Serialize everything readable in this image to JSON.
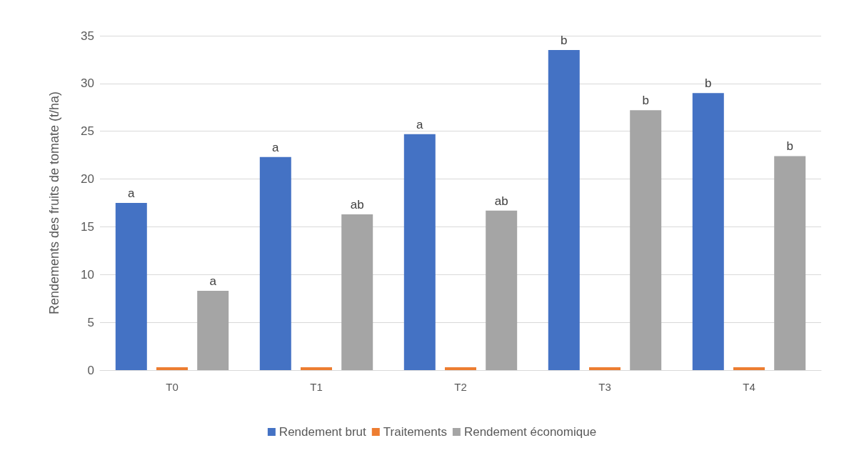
{
  "chart_data": {
    "type": "bar",
    "ylabel": "Rendements des fruits de tomate (t/ha)",
    "categories": [
      "T0",
      "T1",
      "T2",
      "T3",
      "T4"
    ],
    "series": [
      {
        "name": "Rendement brut",
        "color": "#4472c4",
        "values": [
          17.5,
          22.3,
          24.7,
          33.5,
          29.0
        ],
        "value_labels": [
          "a",
          "a",
          "a",
          "b",
          "b"
        ]
      },
      {
        "name": "Traitements",
        "color": "#ed7d31",
        "values": [
          0.3,
          0.3,
          0.3,
          0.3,
          0.3
        ]
      },
      {
        "name": "Rendement économique",
        "color": "#a5a5a5",
        "values": [
          8.3,
          16.3,
          16.7,
          27.2,
          22.4
        ],
        "value_labels": [
          "a",
          "ab",
          "ab",
          "b",
          "b"
        ]
      }
    ],
    "ylim": [
      0,
      35
    ],
    "yticks": [
      0,
      5,
      10,
      15,
      20,
      25,
      30,
      35
    ],
    "grid": "y",
    "legend": "bottom"
  }
}
